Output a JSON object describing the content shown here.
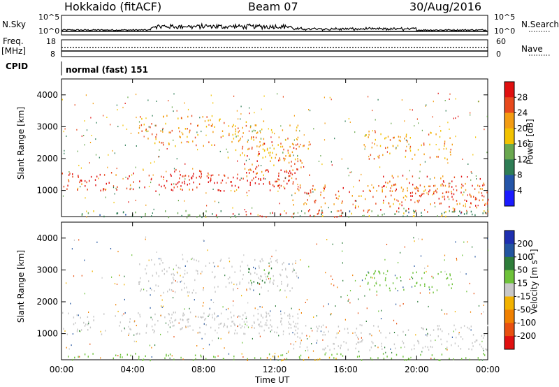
{
  "header": {
    "station": "Hokkaido (fitACF)",
    "beam": "Beam 07",
    "date": "30/Aug/2016"
  },
  "top_panel": {
    "left_label": "N.Sky",
    "right_label": "N.Search",
    "left_ticks": [
      "10^5",
      "10^0"
    ],
    "right_ticks": [
      "10^5",
      "10^0"
    ]
  },
  "freq_panel": {
    "left_label_1": "Freq.",
    "left_label_2": "[MHz]",
    "right_label": "Nave",
    "left_ticks": [
      "18",
      "8"
    ],
    "right_ticks": [
      "60",
      "0"
    ]
  },
  "cpid": {
    "label": "CPID",
    "value": "normal (fast) 151"
  },
  "chart_data": [
    {
      "type": "heatmap",
      "panel": "power",
      "ylabel": "Slant Range [km]",
      "yticks": [
        "1000",
        "2000",
        "3000",
        "4000"
      ],
      "ylim": [
        180,
        4500
      ],
      "xticks": [
        "00:00",
        "04:00",
        "08:00",
        "12:00",
        "16:00",
        "20:00",
        "00:00"
      ],
      "xlim_hours": [
        0,
        24
      ],
      "colorbar": {
        "label": "Power [dB]",
        "ticks": [
          "4",
          "8",
          "12",
          "16",
          "20",
          "24",
          "28"
        ],
        "range": [
          0,
          32
        ],
        "colors": [
          "#1a1aff",
          "#2455a8",
          "#2e7d55",
          "#6aa84f",
          "#f2c200",
          "#f39c12",
          "#e8491d",
          "#e01010"
        ]
      },
      "echo_regions": [
        {
          "t0": 0.0,
          "t1": 13.3,
          "r0": 1000,
          "r1": 1600,
          "value": 28
        },
        {
          "t0": 6.0,
          "t1": 13.3,
          "r0": 1200,
          "r1": 1700,
          "value": 30
        },
        {
          "t0": 10.0,
          "t1": 14.0,
          "r0": 1500,
          "r1": 2700,
          "value": 24
        },
        {
          "t0": 4.3,
          "t1": 9.3,
          "r0": 2400,
          "r1": 3400,
          "value": 22
        },
        {
          "t0": 9.3,
          "t1": 13.3,
          "r0": 2000,
          "r1": 3200,
          "value": 20
        },
        {
          "t0": 13.0,
          "t1": 24.0,
          "r0": 300,
          "r1": 1200,
          "value": 24
        },
        {
          "t0": 18.0,
          "t1": 24.0,
          "r0": 600,
          "r1": 1500,
          "value": 26
        },
        {
          "t0": 17.0,
          "t1": 22.0,
          "r0": 2000,
          "r1": 2900,
          "value": 22
        },
        {
          "t0": 0.0,
          "t1": 24.0,
          "r0": 180,
          "r1": 400,
          "value": 12
        },
        {
          "t0": 8.0,
          "t1": 16.0,
          "r0": 180,
          "r1": 330,
          "value": 30
        }
      ]
    },
    {
      "type": "heatmap",
      "panel": "velocity",
      "ylabel": "Slant Range [km]",
      "yticks": [
        "1000",
        "2000",
        "3000",
        "4000"
      ],
      "ylim": [
        180,
        4500
      ],
      "xticks": [
        "00:00",
        "04:00",
        "08:00",
        "12:00",
        "16:00",
        "20:00",
        "00:00"
      ],
      "xlabel": "Time UT",
      "xlim_hours": [
        0,
        24
      ],
      "colorbar": {
        "label": "Velocity [m s⁻¹]",
        "ticks": [
          "200",
          "100",
          "50",
          "15",
          "-15",
          "-50",
          "-100",
          "-200"
        ],
        "colors": [
          "#1e2fb0",
          "#2355a0",
          "#2e7d3a",
          "#6ec23a",
          "#c8c8c8",
          "#f2b200",
          "#f08000",
          "#e85010",
          "#e01010"
        ]
      },
      "echo_regions": [
        {
          "t0": 0.0,
          "t1": 13.3,
          "r0": 1000,
          "r1": 1700,
          "value": 0
        },
        {
          "t0": 6.0,
          "t1": 13.3,
          "r0": 1200,
          "r1": 1700,
          "value": 0
        },
        {
          "t0": 13.0,
          "t1": 24.0,
          "r0": 500,
          "r1": 1300,
          "value": 0
        },
        {
          "t0": 4.3,
          "t1": 13.3,
          "r0": 2300,
          "r1": 3400,
          "value": 0
        },
        {
          "t0": 10.5,
          "t1": 12.0,
          "r0": 2500,
          "r1": 3100,
          "value": 60
        },
        {
          "t0": 17.0,
          "t1": 22.0,
          "r0": 2300,
          "r1": 3000,
          "value": 30
        },
        {
          "t0": 0.0,
          "t1": 24.0,
          "r0": 180,
          "r1": 400,
          "value": 30
        },
        {
          "t0": 10.0,
          "t1": 16.0,
          "r0": 180,
          "r1": 320,
          "value": -40
        }
      ]
    }
  ]
}
